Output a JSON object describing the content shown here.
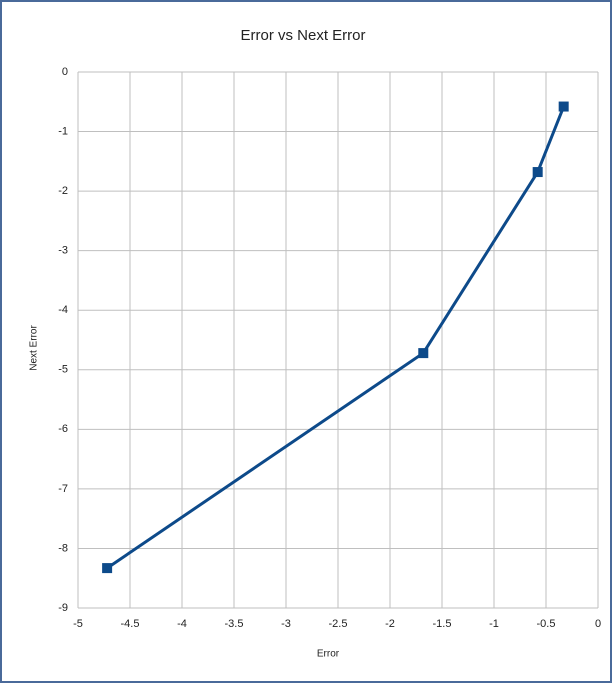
{
  "chart_data": {
    "type": "line",
    "title": "Error vs Next Error",
    "x_label": "Error",
    "y_label": "Next Error",
    "x": [
      -0.33,
      -0.58,
      -1.68,
      -4.72
    ],
    "series": [
      {
        "name": "Next Error",
        "color": "#0d4a8a",
        "values": [
          -0.58,
          -1.68,
          -4.72,
          -8.33
        ]
      }
    ],
    "xlim": [
      -5,
      0
    ],
    "xticks": [
      -5,
      -4.5,
      -4,
      -3.5,
      -3,
      -2.5,
      -2,
      -1.5,
      -1,
      -0.5,
      0
    ],
    "ylim": [
      -9,
      0
    ],
    "yticks": [
      0,
      -1,
      -2,
      -3,
      -4,
      -5,
      -6,
      -7,
      -8,
      -9
    ],
    "grid": true
  }
}
